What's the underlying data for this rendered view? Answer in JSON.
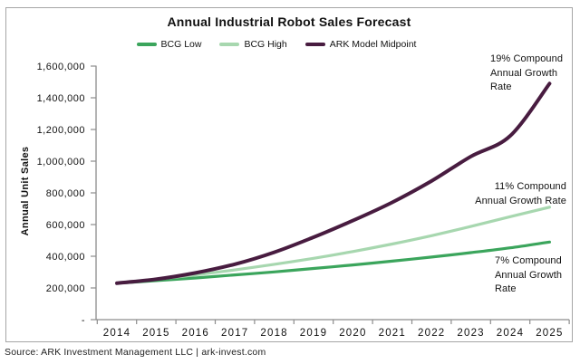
{
  "title": "Annual Industrial Robot Sales Forecast",
  "source": "Source: ARK Investment Management LLC | ark-invest.com",
  "colors": {
    "bcg_low": "#3ba55c",
    "bcg_high": "#a7d7af",
    "ark_midpoint": "#481c40",
    "axis": "#8c8c8c",
    "border": "#a6a6a6",
    "text": "#111111"
  },
  "chart_data": {
    "type": "line",
    "title": "Annual Industrial Robot Sales Forecast",
    "xlabel": "",
    "ylabel": "Annual Unit Sales",
    "x": [
      2014,
      2015,
      2016,
      2017,
      2018,
      2019,
      2020,
      2021,
      2022,
      2023,
      2024,
      2025
    ],
    "ylim": [
      0,
      1600000
    ],
    "grid": false,
    "legend_position": "top",
    "y_ticks": [
      {
        "value": 1600000,
        "label": "1,600,000"
      },
      {
        "value": 1400000,
        "label": "1,400,000"
      },
      {
        "value": 1200000,
        "label": "1,200,000"
      },
      {
        "value": 1000000,
        "label": "1,000,000"
      },
      {
        "value": 800000,
        "label": "800,000"
      },
      {
        "value": 600000,
        "label": "600,000"
      },
      {
        "value": 400000,
        "label": "400,000"
      },
      {
        "value": 200000,
        "label": "200,000"
      },
      {
        "value": 0,
        "label": "-"
      }
    ],
    "series": [
      {
        "name": "BCG Low",
        "color": "#3ba55c",
        "cagr": "7%",
        "values": [
          230000,
          246000,
          263000,
          282000,
          301000,
          323000,
          345000,
          369000,
          395000,
          423000,
          453000,
          490000
        ]
      },
      {
        "name": "BCG High",
        "color": "#a7d7af",
        "cagr": "11%",
        "values": [
          230000,
          255000,
          283000,
          314000,
          349000,
          387000,
          430000,
          477000,
          530000,
          588000,
          650000,
          710000
        ]
      },
      {
        "name": "ARK Model Midpoint",
        "color": "#481c40",
        "cagr": "19%",
        "values": [
          230000,
          255000,
          295000,
          350000,
          425000,
          520000,
          625000,
          740000,
          875000,
          1030000,
          1160000,
          1490000
        ]
      }
    ],
    "annotations": [
      {
        "id": "cagr-19",
        "text": "19% Compound\nAnnual Growth\nRate"
      },
      {
        "id": "cagr-11",
        "text": "11% Compound\nAnnual Growth Rate"
      },
      {
        "id": "cagr-7",
        "text": "7% Compound\nAnnual Growth\nRate"
      }
    ]
  }
}
